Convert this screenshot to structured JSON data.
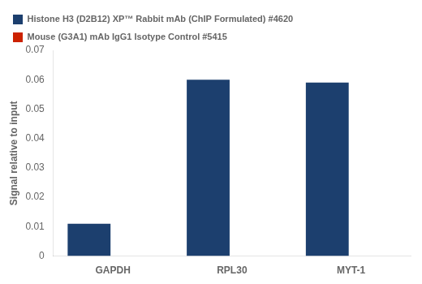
{
  "chart_data": {
    "type": "bar",
    "categories": [
      "GAPDH",
      "RPL30",
      "MYT-1"
    ],
    "series": [
      {
        "name": "Histone H3 (D2B12) XP™ Rabbit mAb (ChIP Formulated) #4620",
        "color": "#1c3f6e",
        "values": [
          0.011,
          0.06,
          0.059
        ]
      },
      {
        "name": "Mouse (G3A1) mAb IgG1 Isotype Control #5415",
        "color": "#cc2200",
        "values": [
          0.0,
          0.0,
          0.0
        ]
      }
    ],
    "ylabel": "Signal relative to input",
    "ylim": [
      0,
      0.07
    ],
    "yticks": [
      0,
      0.01,
      0.02,
      0.03,
      0.04,
      0.05,
      0.06,
      0.07
    ],
    "grid": false,
    "legend": "upper left"
  }
}
